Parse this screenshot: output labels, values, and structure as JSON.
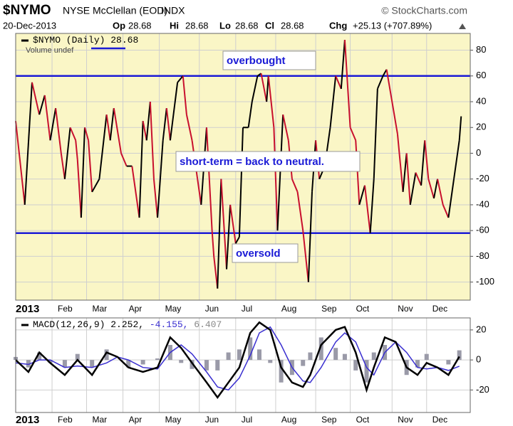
{
  "header": {
    "symbol": "$NYMO",
    "description": "NYSE McClellan (EOD)",
    "exchange": "INDX",
    "credit": "© StockCharts.com",
    "date": "20-Dec-2013",
    "stats": [
      {
        "label": "Op",
        "value": 28.68
      },
      {
        "label": "Hi",
        "value": 28.68
      },
      {
        "label": "Lo",
        "value": 28.68
      },
      {
        "label": "Cl",
        "value": 28.68
      }
    ],
    "change_label": "Chg",
    "change": "+25.13 (+707.89%)"
  },
  "chart_data": [
    {
      "type": "line",
      "legend_value": 28.68,
      "legend_note": "Volume undef",
      "xlim": [
        0,
        250
      ],
      "xticks": [
        {
          "value": 0,
          "label": "2013"
        },
        {
          "value": 20,
          "label": "Feb"
        },
        {
          "value": 39,
          "label": "Mar"
        },
        {
          "value": 59,
          "label": "Apr"
        },
        {
          "value": 79,
          "label": "May"
        },
        {
          "value": 101,
          "label": "Jun"
        },
        {
          "value": 121,
          "label": "Jul"
        },
        {
          "value": 143,
          "label": "Aug"
        },
        {
          "value": 165,
          "label": "Sep"
        },
        {
          "value": 184,
          "label": "Oct"
        },
        {
          "value": 207,
          "label": "Nov"
        },
        {
          "value": 226,
          "label": "Dec"
        }
      ],
      "ylim": [
        -114,
        93
      ],
      "yticks": [
        80,
        60,
        40,
        20,
        0,
        -20,
        -40,
        -60,
        -80,
        -100
      ],
      "grid": true,
      "hlines": [
        60,
        -62
      ],
      "hline_color": "#1a1ad6",
      "background": "#faf6c6",
      "up_color": "#000000",
      "down_color": "#c8102e",
      "series": [
        {
          "name": "$NYMO (Daily)",
          "x": [
            0,
            5,
            9,
            13,
            16,
            19,
            22,
            25,
            27,
            30,
            33,
            34,
            36,
            38,
            40,
            42,
            46,
            50,
            52,
            54,
            58,
            61,
            64,
            68,
            70,
            72,
            74,
            76,
            78,
            81,
            83,
            85,
            89,
            92,
            94,
            97,
            100,
            102,
            105,
            108,
            109,
            111,
            113,
            116,
            118,
            121,
            123,
            125,
            128,
            130,
            133,
            135,
            138,
            139,
            142,
            144,
            147,
            150,
            152,
            155,
            158,
            161,
            163,
            165,
            167,
            170,
            173,
            176,
            179,
            181,
            184,
            187,
            189,
            192,
            195,
            197,
            199,
            202,
            204,
            207,
            210,
            213,
            215,
            217,
            220,
            223,
            225,
            227,
            230,
            232,
            235,
            238,
            241,
            244,
            245
          ],
          "values": [
            25,
            -40,
            55,
            30,
            45,
            10,
            35,
            0,
            -20,
            20,
            10,
            -5,
            -50,
            20,
            10,
            -30,
            -20,
            30,
            10,
            35,
            0,
            -10,
            -10,
            -50,
            25,
            10,
            40,
            -20,
            -50,
            10,
            35,
            10,
            55,
            60,
            30,
            10,
            -20,
            -40,
            20,
            -60,
            -80,
            -105,
            -20,
            -90,
            -40,
            -70,
            -65,
            20,
            20,
            40,
            60,
            62,
            40,
            60,
            20,
            -60,
            30,
            10,
            -20,
            -30,
            -60,
            -100,
            -30,
            10,
            -20,
            -10,
            20,
            60,
            50,
            88,
            20,
            10,
            -40,
            -25,
            -62,
            -20,
            50,
            60,
            65,
            40,
            15,
            -30,
            0,
            -40,
            -15,
            -25,
            10,
            -20,
            -35,
            -20,
            -40,
            -50,
            -20,
            10,
            28.68
          ]
        }
      ],
      "annotations": [
        {
          "text": "overbought"
        },
        {
          "text": "short-term = back to neutral."
        },
        {
          "text": "oversold"
        }
      ]
    },
    {
      "type": "macd",
      "legend_label": "MACD(12,26,9)",
      "legend_entries": [
        {
          "value": 2.252,
          "label": "2.252,"
        },
        {
          "value": -4.155,
          "label": "-4.155,"
        },
        {
          "value": 6.407,
          "label": "6.407"
        }
      ],
      "xlim": [
        0,
        250
      ],
      "xticks": [
        {
          "value": 0,
          "label": "2013"
        },
        {
          "value": 20,
          "label": "Feb"
        },
        {
          "value": 39,
          "label": "Mar"
        },
        {
          "value": 59,
          "label": "Apr"
        },
        {
          "value": 79,
          "label": "May"
        },
        {
          "value": 101,
          "label": "Jun"
        },
        {
          "value": 121,
          "label": "Jul"
        },
        {
          "value": 143,
          "label": "Aug"
        },
        {
          "value": 165,
          "label": "Sep"
        },
        {
          "value": 184,
          "label": "Oct"
        },
        {
          "value": 207,
          "label": "Nov"
        },
        {
          "value": 226,
          "label": "Dec"
        }
      ],
      "ylim": [
        -35,
        28
      ],
      "yticks": [
        20,
        0,
        -20
      ],
      "grid": true,
      "background": "#ffffff",
      "x": [
        0,
        7,
        13,
        19,
        27,
        34,
        42,
        50,
        56,
        62,
        70,
        78,
        85,
        91,
        97,
        105,
        111,
        117,
        123,
        129,
        134,
        140,
        146,
        152,
        158,
        162,
        168,
        176,
        181,
        187,
        193,
        197,
        203,
        209,
        215,
        221,
        226,
        232,
        238,
        244
      ],
      "series": [
        {
          "name": "MACD",
          "color": "#000000",
          "values": [
            0,
            -8,
            5,
            -2,
            -10,
            0,
            -10,
            5,
            2,
            -5,
            -8,
            -5,
            15,
            8,
            -2,
            -15,
            -25,
            -15,
            -5,
            18,
            25,
            20,
            -5,
            -15,
            -18,
            -10,
            10,
            20,
            22,
            5,
            -20,
            -5,
            15,
            12,
            -5,
            -10,
            -2,
            -5,
            -10,
            2.252
          ]
        },
        {
          "name": "Signal",
          "color": "#3a2fd0",
          "values": [
            -2,
            -3,
            0,
            0,
            -5,
            -4,
            -5,
            -2,
            2,
            0,
            -5,
            -6,
            5,
            10,
            4,
            -8,
            -18,
            -20,
            -12,
            3,
            18,
            22,
            10,
            -5,
            -14,
            -15,
            -5,
            12,
            18,
            12,
            -5,
            -10,
            5,
            12,
            5,
            -5,
            -6,
            -5,
            -7,
            -4.155
          ]
        },
        {
          "name": "Histogram",
          "color": "#9a9aa8",
          "values": [
            2,
            -5,
            5,
            -2,
            -5,
            4,
            -5,
            7,
            0,
            -5,
            -3,
            1,
            10,
            -2,
            -6,
            -7,
            -7,
            5,
            7,
            15,
            7,
            -2,
            -15,
            -10,
            -4,
            5,
            15,
            8,
            4,
            -7,
            -15,
            5,
            10,
            0,
            -10,
            -5,
            4,
            0,
            -3,
            6.407
          ]
        }
      ]
    }
  ]
}
